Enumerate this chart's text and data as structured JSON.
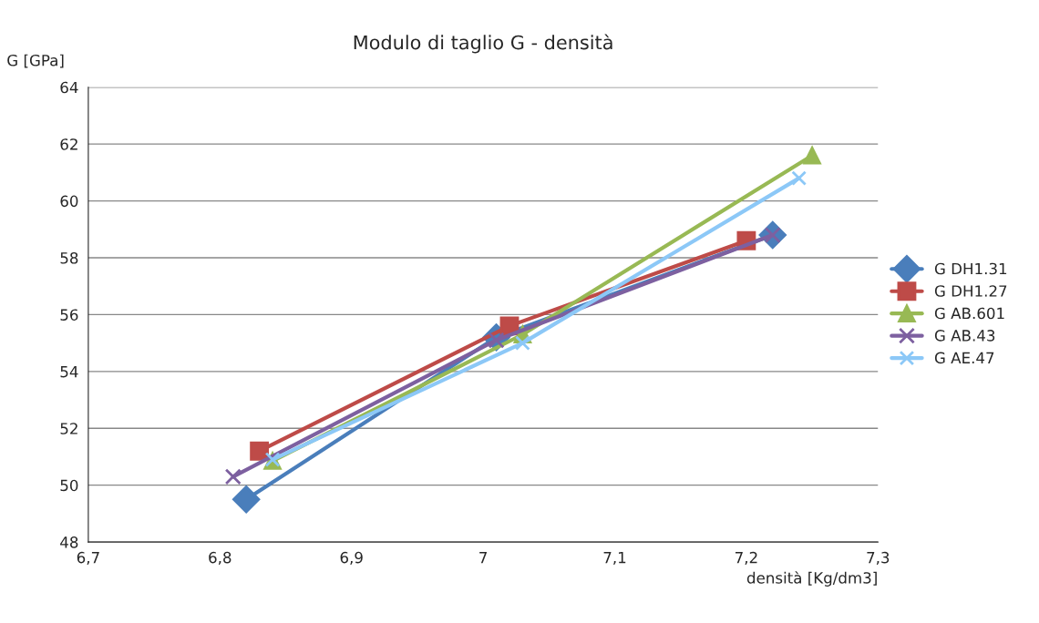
{
  "chart_data": {
    "type": "line",
    "title": "Modulo di taglio G - densità",
    "xlabel": "densità [Kg/dm3]",
    "ylabel": "G [GPa]",
    "series": [
      {
        "name": "G DH1.31",
        "color": "#4a7ebb",
        "marker": "diamond",
        "x": [
          6.82,
          7.01,
          7.22
        ],
        "values": [
          49.5,
          55.2,
          58.8
        ]
      },
      {
        "name": "G DH1.27",
        "color": "#be4b48",
        "marker": "square",
        "x": [
          6.83,
          7.02,
          7.2
        ],
        "values": [
          51.2,
          55.6,
          58.6
        ]
      },
      {
        "name": "G AB.601",
        "color": "#98b954",
        "marker": "triangle",
        "x": [
          6.84,
          7.03,
          7.25
        ],
        "values": [
          50.85,
          55.3,
          61.6
        ]
      },
      {
        "name": "G AB.43",
        "color": "#7d60a0",
        "marker": "cross",
        "x": [
          6.81,
          7.01,
          7.22
        ],
        "values": [
          50.3,
          55.1,
          58.8
        ]
      },
      {
        "name": "G AE.47",
        "color": "#8cc8f7",
        "marker": "cross",
        "x": [
          6.84,
          7.03,
          7.24
        ],
        "values": [
          50.9,
          55.0,
          60.8
        ]
      }
    ],
    "xlim": [
      6.7,
      7.3
    ],
    "xticks": [
      {
        "value": 6.7,
        "label": "6,7"
      },
      {
        "value": 6.8,
        "label": "6,8"
      },
      {
        "value": 6.9,
        "label": "6,9"
      },
      7,
      {
        "value": 7.1,
        "label": "7,1"
      },
      {
        "value": 7.2,
        "label": "7,2"
      },
      {
        "value": 7.3,
        "label": "7,3"
      }
    ],
    "ylim": [
      48,
      64
    ],
    "yticks": [
      48,
      50,
      52,
      54,
      56,
      58,
      60,
      62,
      64
    ],
    "grid": "y",
    "legend": "right"
  }
}
